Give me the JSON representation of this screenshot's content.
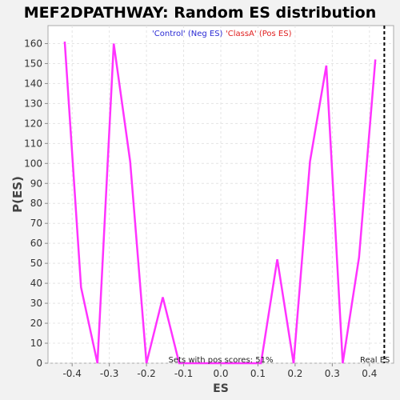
{
  "chart_data": {
    "type": "line",
    "title": "MEF2DPATHWAY: Random ES distribution",
    "xlabel": "ES",
    "ylabel": "P(ES)",
    "xlim": [
      -0.465,
      0.465
    ],
    "ylim": [
      0,
      169
    ],
    "xticks": [
      -0.4,
      -0.3,
      -0.2,
      -0.1,
      0.0,
      0.1,
      0.2,
      0.3,
      0.4
    ],
    "xtick_labels": [
      "-0.4",
      "-0.3",
      "-0.2",
      "-0.1",
      "0.0",
      "0.1",
      "0.2",
      "0.3",
      "0.4"
    ],
    "yticks": [
      0,
      10,
      20,
      30,
      40,
      50,
      60,
      70,
      80,
      90,
      100,
      110,
      120,
      130,
      140,
      150,
      160
    ],
    "ytick_labels": [
      "0",
      "10",
      "20",
      "30",
      "40",
      "50",
      "60",
      "70",
      "80",
      "90",
      "100",
      "110",
      "120",
      "130",
      "140",
      "150",
      "160"
    ],
    "grid": true,
    "legend": [
      {
        "label": "'Control' (Neg ES)",
        "color": "#2a2ad4"
      },
      {
        "label": "'ClassA' (Pos ES)",
        "color": "#e02020"
      }
    ],
    "series": [
      {
        "color": "#ff33ff",
        "x": [
          -0.42,
          -0.376,
          -0.332,
          -0.288,
          -0.244,
          -0.2,
          -0.156,
          -0.112,
          -0.068,
          -0.024,
          0.02,
          0.064,
          0.108,
          0.152,
          0.196,
          0.24,
          0.284,
          0.328,
          0.372,
          0.416
        ],
        "y": [
          161,
          38,
          0,
          160,
          101,
          0,
          33,
          0,
          0,
          0,
          0,
          0,
          0,
          52,
          0,
          101,
          149,
          0,
          53,
          152
        ]
      }
    ],
    "real_es": {
      "x": 0.44,
      "label": "Real ES"
    },
    "annotation": "Sets with pos scores: 51%"
  }
}
